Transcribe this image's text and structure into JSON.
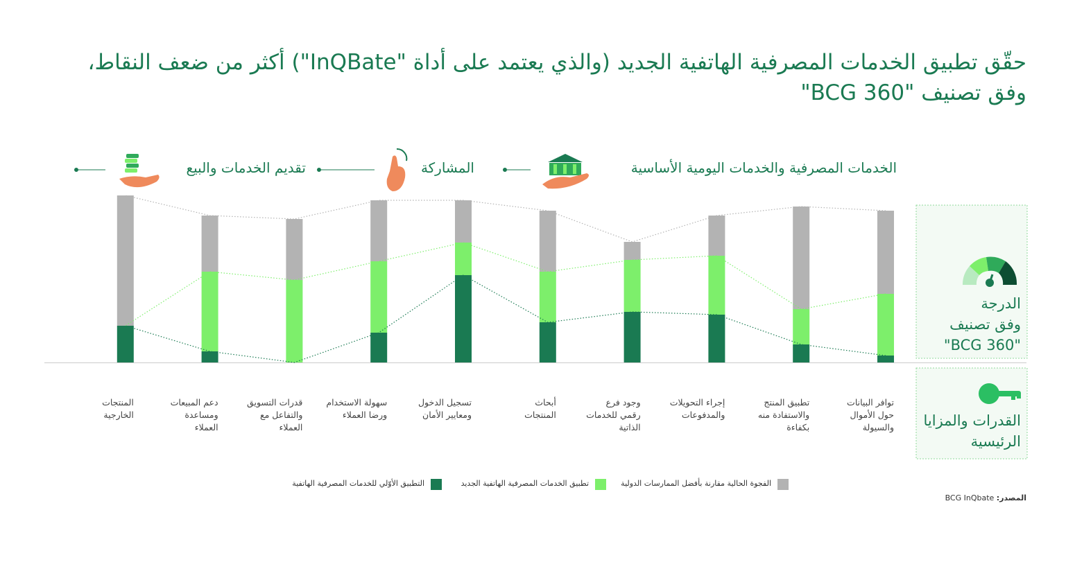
{
  "chart_data": {
    "type": "bar",
    "stacked": true,
    "title": "حقّق تطبيق الخدمات المصرفية الهاتفية الجديد (والذي يعتمد على أداة \"InQBate\") أكثر من ضعف النقاط، وفق تصنيف \"BCG 360\"",
    "categories": [
      "توافر البيانات\nحول الأموال\nوالسيولة",
      "تطبيق المنتج\nوالاستفادة منه\nبكفاءة",
      "إجراء التحويلات\nوالمدفوعات",
      "وجود فرع\nرقمي للخدمات\nالذاتية",
      "أبحاث\nالمنتجات",
      "تسجيل الدخول\nومعايير الأمان",
      "سهولة الاستخدام\nورضا العملاء",
      "قدرات التسويق\nوالتفاعل مع\nالعملاء",
      "دعم المبيعات\nومساعدة\nالعملاء",
      "المنتجات\nالخارجية"
    ],
    "series": [
      {
        "name": "التطبيق الأوّلي للخدمات المصرفية الهاتفية",
        "color": "#1a7a52",
        "values": [
          10,
          26,
          69,
          73,
          58,
          126,
          43,
          0,
          16,
          53
        ]
      },
      {
        "name": "تطبيق الخدمات المصرفية الهاتفية الجديد",
        "color": "#7def6b",
        "values": [
          89,
          51,
          85,
          75,
          73,
          47,
          103,
          119,
          115,
          0
        ]
      },
      {
        "name": "الفجوة الحالية مقارنة بأفضل الممارسات الدولية",
        "color": "#b3b3b3",
        "values": [
          120,
          148,
          58,
          26,
          88,
          61,
          88,
          88,
          81,
          188
        ]
      }
    ],
    "ylim": [
      0,
      250
    ]
  },
  "sections": [
    "الخدمات المصرفية والخدمات اليومية الأساسية",
    "المشاركة",
    "تقديم الخدمات والبيع"
  ],
  "side_panel": {
    "score": "الدرجة\nوفق تصنيف\n\"BCG 360\"",
    "capabilities": "القدرات والمزايا\nالرئيسية"
  },
  "source": {
    "label": "المصدر:",
    "text": "BCG InQbate"
  }
}
